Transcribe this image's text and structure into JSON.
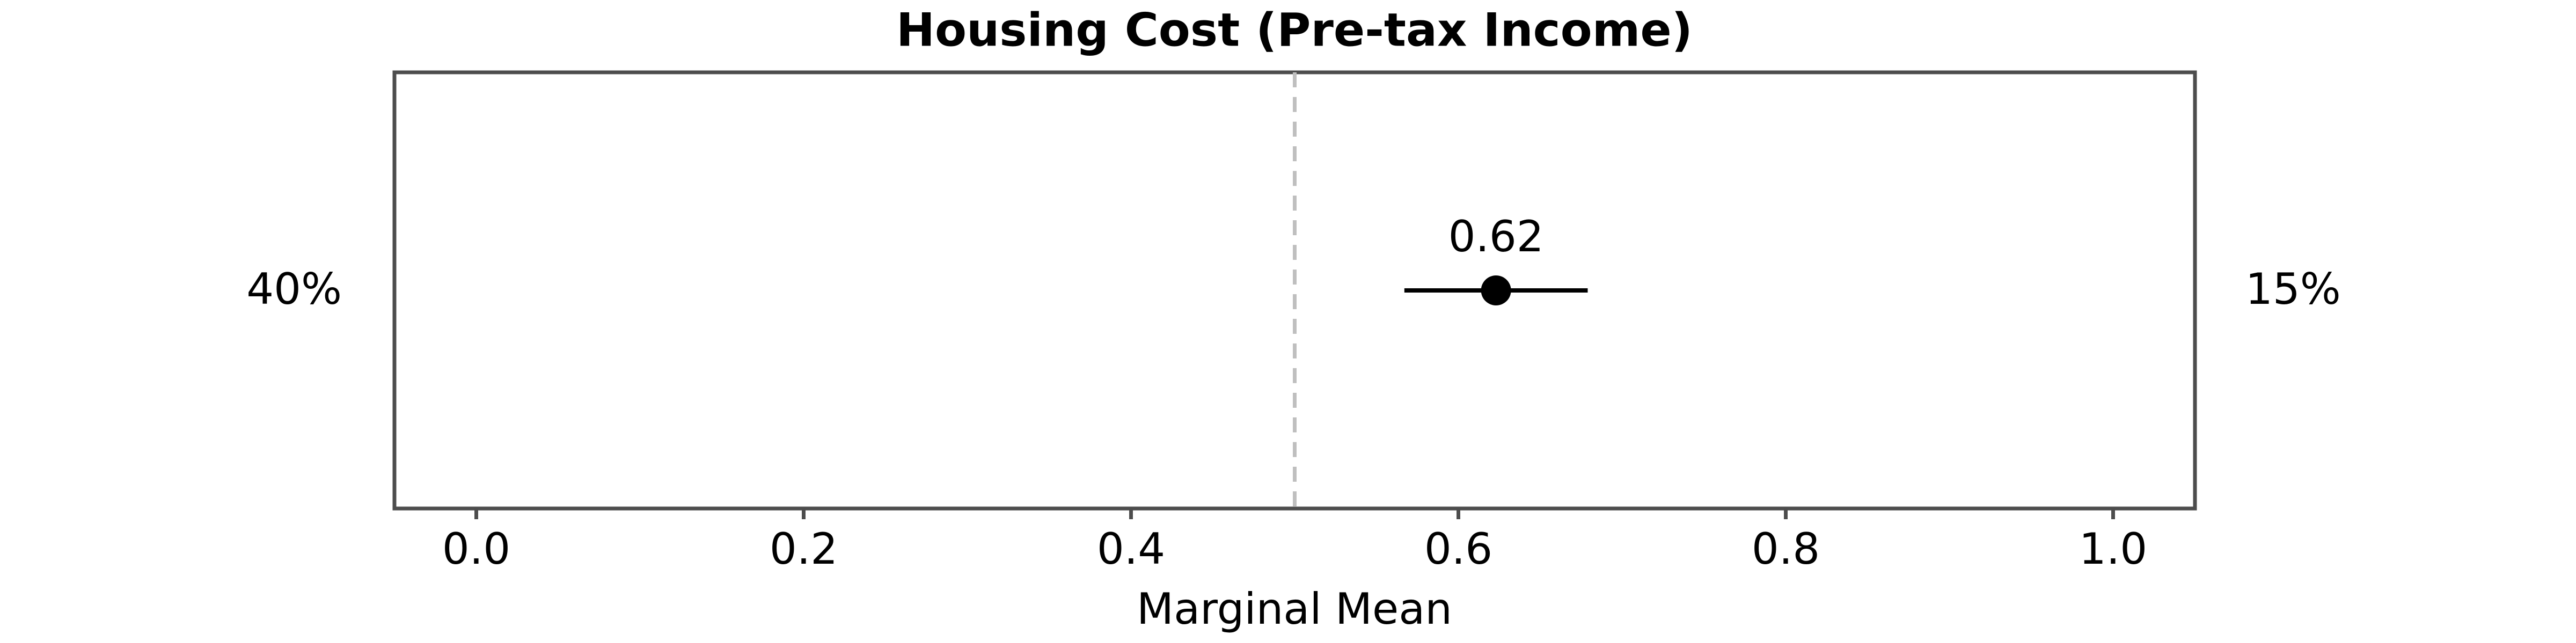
{
  "chart_data": {
    "type": "errorbar",
    "title": "Housing Cost (Pre-tax Income)",
    "values": [
      0.623
    ],
    "errors": [
      0.056
    ],
    "value_labels": [
      "0.62"
    ],
    "color": "#000000",
    "left_label": "40%",
    "right_label": "15%",
    "reference_line": 0.5,
    "xlabel": "Marginal Mean",
    "xlim": [
      -0.05,
      1.05
    ],
    "xticks": [
      {
        "value": 0,
        "label": "0.0"
      },
      0.2,
      0.4,
      0.6,
      0.8,
      {
        "value": 1,
        "label": "1.0"
      }
    ]
  }
}
